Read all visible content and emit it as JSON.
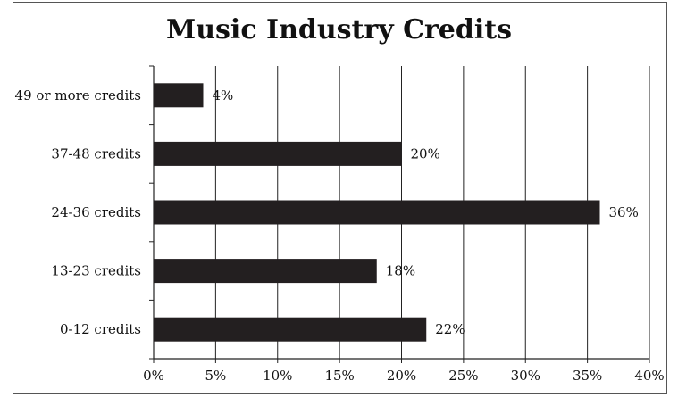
{
  "chart_data": {
    "type": "bar",
    "orientation": "horizontal",
    "title": "Music Industry Credits",
    "categories": [
      "0-12 credits",
      "13-23 credits",
      "24-36 credits",
      "37-48 credits",
      "49 or more credits"
    ],
    "values": [
      22,
      18,
      36,
      20,
      4
    ],
    "value_labels": [
      "22%",
      "18%",
      "36%",
      "20%",
      "4%"
    ],
    "xlim": [
      0,
      40
    ],
    "xticks": [
      0,
      5,
      10,
      15,
      20,
      25,
      30,
      35,
      40
    ],
    "xtick_labels": [
      "0%",
      "5%",
      "10%",
      "15%",
      "20%",
      "25%",
      "30%",
      "35%",
      "40%"
    ],
    "xlabel": "",
    "ylabel": "",
    "grid": "vertical",
    "legend": "none",
    "bar_color": "#231f20"
  }
}
